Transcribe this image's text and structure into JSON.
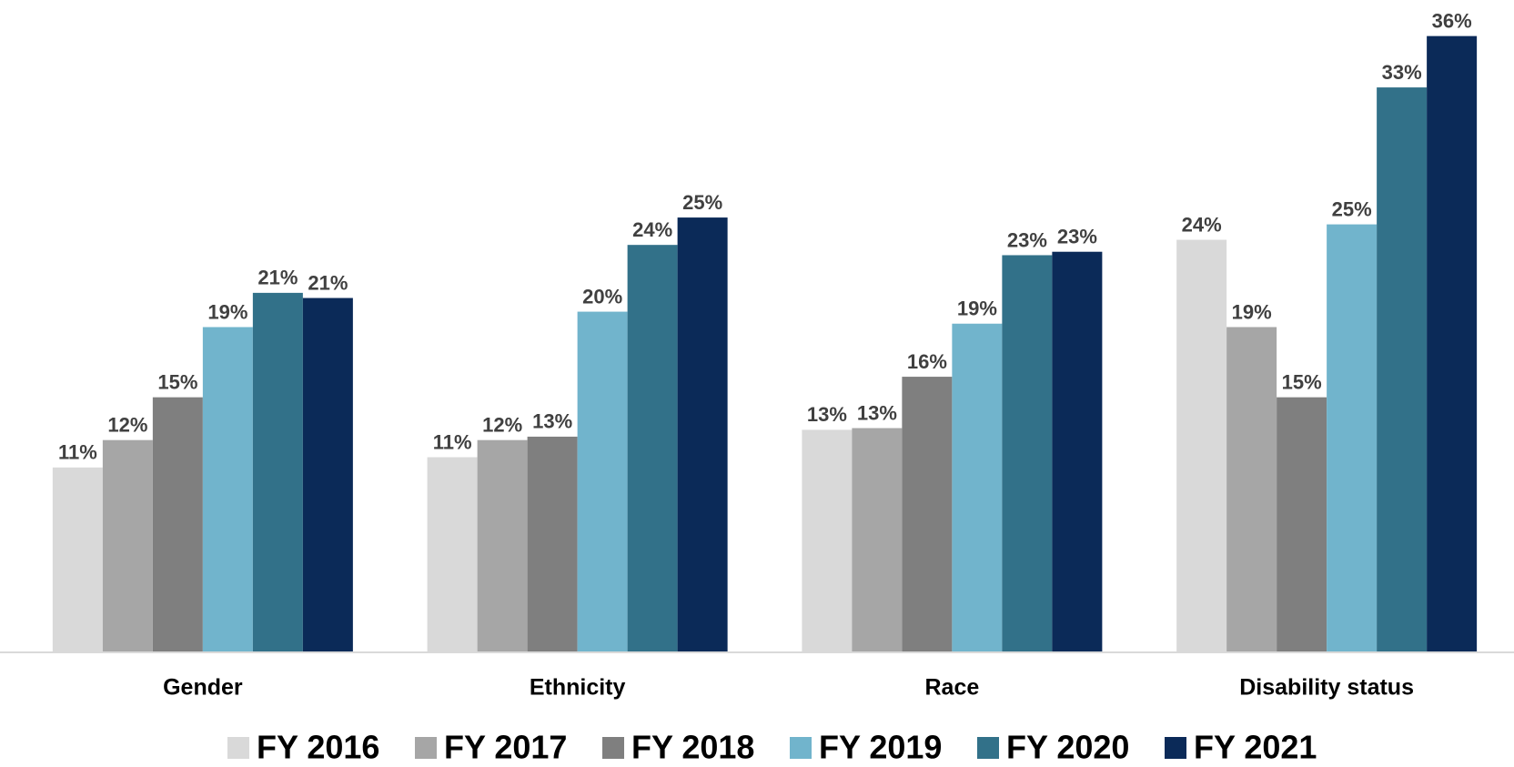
{
  "chart_data": {
    "type": "bar",
    "categories": [
      "Gender",
      "Ethnicity",
      "Race",
      "Disability status"
    ],
    "series": [
      {
        "name": "FY 2016",
        "color": "#d9d9d9",
        "values": [
          10.8,
          11.4,
          13.0,
          24.1
        ],
        "value_labels": [
          "11%",
          "11%",
          "13%",
          "24%"
        ]
      },
      {
        "name": "FY 2017",
        "color": "#a6a6a6",
        "values": [
          12.4,
          12.4,
          13.1,
          19.0
        ],
        "value_labels": [
          "12%",
          "12%",
          "13%",
          "19%"
        ]
      },
      {
        "name": "FY 2018",
        "color": "#7f7f7f",
        "values": [
          14.9,
          12.6,
          16.1,
          14.9
        ],
        "value_labels": [
          "15%",
          "13%",
          "16%",
          "15%"
        ]
      },
      {
        "name": "FY 2019",
        "color": "#71b4cc",
        "values": [
          19.0,
          19.9,
          19.2,
          25.0
        ],
        "value_labels": [
          "19%",
          "20%",
          "19%",
          "25%"
        ]
      },
      {
        "name": "FY 2020",
        "color": "#327189",
        "values": [
          21.0,
          23.8,
          23.2,
          33.0
        ],
        "value_labels": [
          "21%",
          "24%",
          "23%",
          "33%"
        ]
      },
      {
        "name": "FY 2021",
        "color": "#0b2a58",
        "values": [
          20.7,
          25.4,
          23.4,
          36.0
        ],
        "value_labels": [
          "21%",
          "25%",
          "23%",
          "36%"
        ]
      }
    ],
    "ylim": [
      0,
      38
    ],
    "legend": "bottom"
  }
}
